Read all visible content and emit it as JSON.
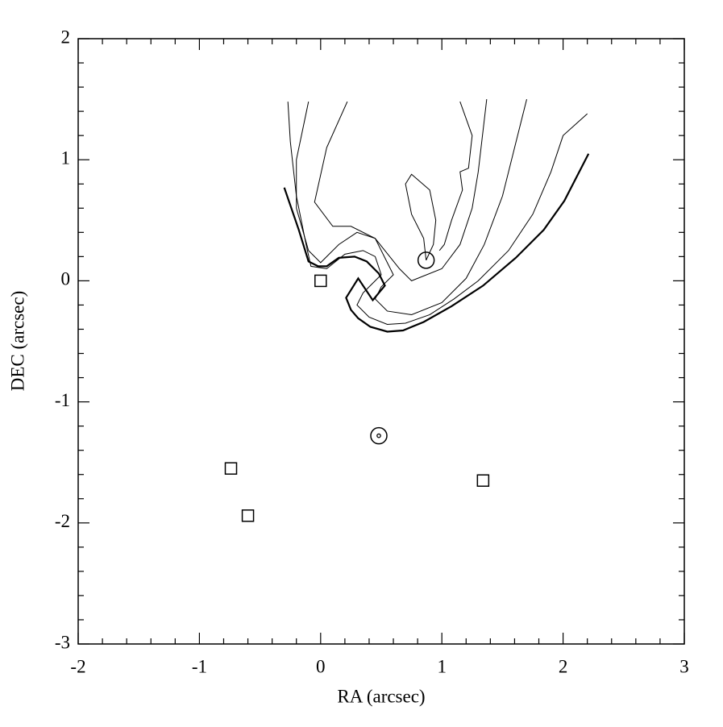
{
  "chart_data": {
    "type": "contour",
    "xlabel": "RA (arcsec)",
    "ylabel": "DEC (arcsec)",
    "xlim": [
      -2,
      3
    ],
    "ylim": [
      -3,
      2
    ],
    "xticks": [
      -2,
      -1,
      0,
      1,
      2,
      3
    ],
    "yticks": [
      -3,
      -2,
      -1,
      0,
      1,
      2
    ],
    "xminorticks": [
      -1.8,
      -1.6,
      -1.4,
      -1.2,
      -0.8,
      -0.6,
      -0.4,
      -0.2,
      0.2,
      0.4,
      0.6,
      0.8,
      1.2,
      1.4,
      1.6,
      1.8,
      2.2,
      2.4,
      2.6,
      2.8
    ],
    "yminorticks": [
      -2.8,
      -2.6,
      -2.4,
      -2.2,
      -1.8,
      -1.6,
      -1.4,
      -1.2,
      -0.8,
      -0.6,
      -0.4,
      -0.2,
      0.2,
      0.4,
      0.6,
      0.8,
      1.2,
      1.4,
      1.6,
      1.8
    ],
    "color": "#000000",
    "series": [
      {
        "marker": "line",
        "width": 2.2,
        "x": [
          -0.3,
          -0.18,
          -0.1,
          -0.02,
          0.05,
          0.15,
          0.28,
          0.38,
          0.48,
          0.53,
          0.43,
          0.31,
          0.21,
          0.25,
          0.31,
          0.41,
          0.55,
          0.68,
          0.85,
          1.08,
          1.34,
          1.61,
          1.84,
          2.01,
          2.21
        ],
        "y": [
          0.77,
          0.42,
          0.16,
          0.12,
          0.12,
          0.19,
          0.2,
          0.16,
          0.06,
          -0.04,
          -0.16,
          0.02,
          -0.14,
          -0.24,
          -0.31,
          -0.38,
          -0.42,
          -0.41,
          -0.34,
          -0.21,
          -0.04,
          0.19,
          0.42,
          0.66,
          1.05
        ]
      },
      {
        "marker": "line",
        "width": 1,
        "x": [
          -0.27,
          -0.25,
          -0.2,
          -0.12,
          -0.08,
          0.05,
          0.2,
          0.35,
          0.45,
          0.5,
          0.4,
          0.35,
          0.3,
          0.4,
          0.55,
          0.7,
          0.9,
          1.1,
          1.3,
          1.55,
          1.75,
          1.9,
          2.0,
          2.2
        ],
        "y": [
          1.48,
          1.15,
          0.7,
          0.3,
          0.12,
          0.1,
          0.22,
          0.25,
          0.2,
          0.05,
          -0.05,
          -0.1,
          -0.2,
          -0.3,
          -0.36,
          -0.35,
          -0.28,
          -0.15,
          0.0,
          0.25,
          0.55,
          0.9,
          1.2,
          1.38
        ]
      },
      {
        "marker": "line",
        "width": 1,
        "x": [
          -0.1,
          -0.2,
          -0.2,
          -0.1,
          0.0,
          0.15,
          0.3,
          0.45,
          0.55,
          0.6,
          0.5,
          0.45,
          0.55,
          0.75,
          1.0,
          1.2,
          1.35,
          1.5,
          1.6,
          1.7
        ],
        "y": [
          1.48,
          1.0,
          0.6,
          0.25,
          0.15,
          0.3,
          0.4,
          0.35,
          0.15,
          0.05,
          -0.05,
          -0.15,
          -0.25,
          -0.28,
          -0.18,
          0.02,
          0.3,
          0.7,
          1.1,
          1.5
        ]
      },
      {
        "marker": "line",
        "width": 1,
        "x": [
          0.22,
          0.05,
          -0.05,
          0.1,
          0.25,
          0.45,
          0.65,
          0.75,
          1.0,
          1.15,
          1.25,
          1.3,
          1.37
        ],
        "y": [
          1.48,
          1.1,
          0.65,
          0.45,
          0.45,
          0.35,
          0.1,
          0.0,
          0.1,
          0.3,
          0.6,
          0.9,
          1.5
        ]
      },
      {
        "marker": "line",
        "width": 1,
        "x": [
          1.15,
          1.25,
          1.22,
          1.15,
          1.17,
          1.08,
          1.02,
          0.98
        ],
        "y": [
          1.48,
          1.2,
          0.93,
          0.9,
          0.75,
          0.5,
          0.3,
          0.25
        ]
      },
      {
        "marker": "line",
        "width": 1,
        "x": [
          0.87,
          0.85,
          0.75,
          0.7,
          0.75,
          0.9,
          0.95,
          0.93,
          0.87
        ],
        "y": [
          0.17,
          0.35,
          0.55,
          0.8,
          0.88,
          0.75,
          0.5,
          0.3,
          0.17
        ]
      },
      {
        "marker": "square",
        "x": [
          0,
          -0.74,
          -0.6,
          1.34
        ],
        "y": [
          0,
          -1.55,
          -1.94,
          -1.65
        ]
      },
      {
        "marker": "circle",
        "x": [
          0.87
        ],
        "y": [
          0.17
        ]
      },
      {
        "marker": "circle-dot",
        "x": [
          0.48
        ],
        "y": [
          -1.28
        ]
      }
    ]
  }
}
